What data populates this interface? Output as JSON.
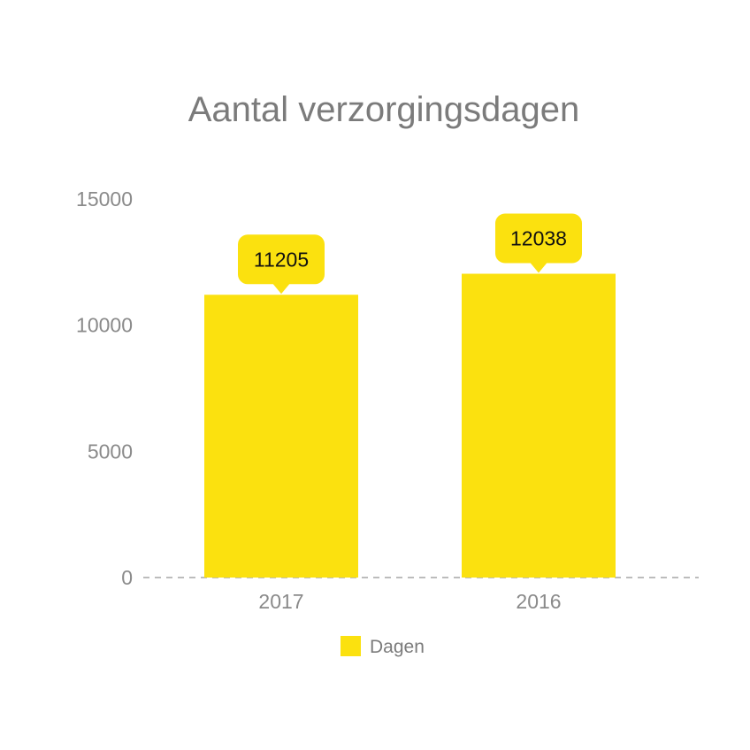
{
  "chart_data": {
    "type": "bar",
    "title": "Aantal verzorgingsdagen",
    "xlabel": "",
    "ylabel": "",
    "categories": [
      "2017",
      "2016"
    ],
    "series": [
      {
        "name": "Dagen",
        "values": [
          11205,
          12038
        ],
        "color": "#fbe10f"
      }
    ],
    "ylim": [
      0,
      15000
    ],
    "yticks": [
      0,
      5000,
      10000,
      15000
    ],
    "grid": false,
    "data_labels": true,
    "legend_position": "bottom"
  }
}
